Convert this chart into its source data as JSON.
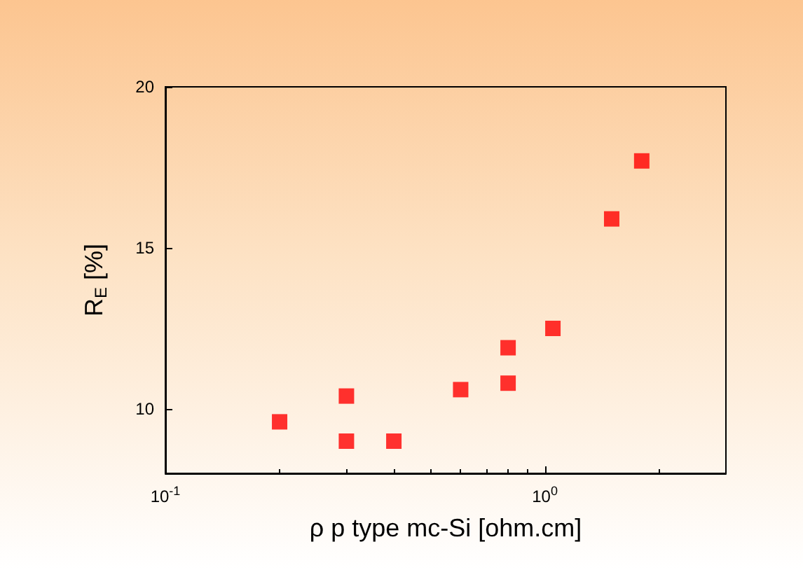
{
  "chart_data": {
    "type": "scatter",
    "xlabel": "ρ p type mc-Si [ohm.cm]",
    "ylabel": "R$_{E}$ [%]",
    "x": [
      0.2,
      0.3,
      0.3,
      0.4,
      0.6,
      0.8,
      0.8,
      1.05,
      1.5,
      1.8
    ],
    "series": [
      {
        "color": "#ff0000",
        "values": [
          9.6,
          10.4,
          9.0,
          9.0,
          10.6,
          11.9,
          10.8,
          12.5,
          15.9,
          17.7
        ]
      }
    ],
    "log": "x",
    "xlim": [
      0.1,
      3
    ],
    "xticks": [
      {
        "value": 0.1,
        "label": "10$^{-1}$"
      },
      {
        "value": 1,
        "label": "10$^{0}$"
      }
    ],
    "ylim": [
      8,
      20
    ],
    "yticks": [
      10,
      15,
      20
    ],
    "marker": "square",
    "grid": false
  }
}
